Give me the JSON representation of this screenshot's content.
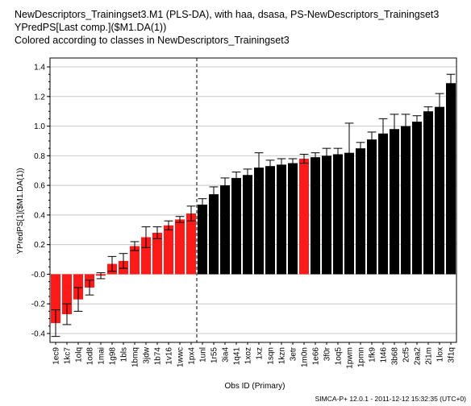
{
  "title_lines": [
    "NewDescriptors_Trainingset3.M1 (PLS-DA), with haa, dsasa, PS-NewDescriptors_Trainingset3",
    "YPredPS[Last comp.]($M1.DA(1))",
    "Colored according to classes in NewDescriptors_Trainingset3"
  ],
  "footer": "SIMCA-P+ 12.0.1 - 2011-12-12 15:32:35 (UTC+0)",
  "colors": {
    "class1": "#ff1a1a",
    "class2": "#000000",
    "grid": "#c8c8c8"
  },
  "chart_data": {
    "type": "bar",
    "xlabel": "Obs ID (Primary)",
    "ylabel": "YPredPS[1]($M1.DA(1))",
    "ylim": [
      -0.46,
      1.46
    ],
    "yticks": [
      -0.4,
      -0.2,
      0.0,
      0.2,
      0.4,
      0.6,
      0.8,
      1.0,
      1.2,
      1.4
    ],
    "ytick_labels": [
      "-0.4",
      "-0.2",
      "-0.0",
      "0.2",
      "0.4",
      "0.6",
      "0.8",
      "1.0",
      "1.2",
      "1.4"
    ],
    "grid": "horizontal",
    "divider_after_index": 15,
    "categories": [
      "1ec9",
      "1kc7",
      "1olq",
      "1od8",
      "1mai",
      "1g98",
      "1bls",
      "1bmq",
      "3jdw",
      "1b74",
      "1v16",
      "1wwc",
      "1px4",
      "1unl",
      "1r55",
      "3ia4",
      "1q41",
      "1xoz",
      "1xz",
      "1sqn",
      "1kzn",
      "3etr",
      "1m0n",
      "1e66",
      "3f0r",
      "1oq5",
      "1pwm",
      "1pmn",
      "1fk9",
      "1t46",
      "3b68",
      "2cf5",
      "2aa2",
      "2i1m",
      "1lox",
      "3f1q"
    ],
    "values": [
      -0.33,
      -0.27,
      -0.17,
      -0.09,
      -0.01,
      0.07,
      0.09,
      0.19,
      0.25,
      0.28,
      0.33,
      0.37,
      0.41,
      0.47,
      0.54,
      0.6,
      0.65,
      0.67,
      0.72,
      0.73,
      0.74,
      0.75,
      0.78,
      0.79,
      0.8,
      0.81,
      0.82,
      0.85,
      0.91,
      0.95,
      0.98,
      1.0,
      1.03,
      1.1,
      1.13,
      1.29
    ],
    "errors": [
      0.09,
      0.07,
      0.08,
      0.05,
      0.02,
      0.05,
      0.05,
      0.03,
      0.07,
      0.04,
      0.03,
      0.02,
      0.05,
      0.04,
      0.05,
      0.05,
      0.04,
      0.04,
      0.1,
      0.04,
      0.04,
      0.03,
      0.03,
      0.03,
      0.05,
      0.04,
      0.2,
      0.04,
      0.05,
      0.1,
      0.1,
      0.08,
      0.04,
      0.03,
      0.09,
      0.06
    ],
    "classes": [
      1,
      1,
      1,
      1,
      1,
      1,
      1,
      1,
      1,
      1,
      1,
      1,
      1,
      2,
      2,
      2,
      2,
      2,
      2,
      2,
      2,
      2,
      1,
      2,
      2,
      2,
      2,
      2,
      2,
      2,
      2,
      2,
      2,
      2,
      2,
      2
    ]
  }
}
